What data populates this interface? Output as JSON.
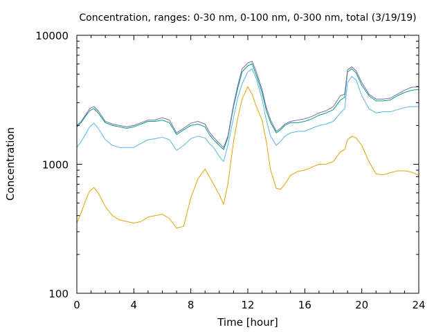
{
  "chart_data": {
    "type": "line",
    "title": "Concentration, ranges: 0-30 nm, 0-100 nm, 0-300 nm, total (3/19/19)",
    "xlabel": "Time [hour]",
    "ylabel": "Concentration",
    "xlim": [
      0,
      24
    ],
    "ylim": [
      100,
      10000
    ],
    "yscale": "log",
    "grid": false,
    "legend": "none",
    "x_ticks": [
      0,
      4,
      8,
      12,
      16,
      20,
      24
    ],
    "x_tick_labels": [
      "0",
      "4",
      "8",
      "12",
      "16",
      "20",
      "24"
    ],
    "y_ticks": [
      100,
      1000,
      10000
    ],
    "y_tick_labels": [
      "100",
      "1000",
      "10000"
    ],
    "series": [
      {
        "color": "#e69f00",
        "x": [
          0,
          0.3,
          0.6,
          0.9,
          1.2,
          1.5,
          2,
          2.5,
          3,
          3.5,
          4,
          4.5,
          5,
          5.5,
          6,
          6.5,
          7,
          7.5,
          8,
          8.5,
          9,
          9.3,
          9.6,
          10,
          10.3,
          10.6,
          11,
          11.3,
          11.6,
          12,
          12.3,
          12.6,
          13,
          13.3,
          13.6,
          14,
          14.3,
          14.6,
          15,
          15.5,
          16,
          16.5,
          17,
          17.5,
          18,
          18.5,
          18.8,
          19,
          19.3,
          19.6,
          20,
          20.5,
          21,
          21.5,
          22,
          22.5,
          23,
          23.5,
          24
        ],
        "y": [
          350,
          420,
          520,
          620,
          660,
          600,
          470,
          400,
          370,
          360,
          350,
          360,
          390,
          400,
          410,
          380,
          320,
          330,
          550,
          770,
          920,
          800,
          700,
          580,
          490,
          700,
          1500,
          2300,
          3200,
          4000,
          3500,
          2800,
          2200,
          1500,
          900,
          650,
          640,
          700,
          820,
          880,
          900,
          950,
          1000,
          1000,
          1050,
          1250,
          1300,
          1550,
          1650,
          1600,
          1400,
          1050,
          840,
          830,
          860,
          890,
          890,
          870,
          820
        ]
      },
      {
        "color": "#56b4e9",
        "x": [
          0,
          0.3,
          0.6,
          0.9,
          1.2,
          1.5,
          2,
          2.5,
          3,
          3.5,
          4,
          4.5,
          5,
          5.5,
          6,
          6.5,
          7,
          7.5,
          8,
          8.5,
          9,
          9.3,
          9.6,
          10,
          10.3,
          10.6,
          11,
          11.3,
          11.6,
          12,
          12.3,
          12.6,
          13,
          13.3,
          13.6,
          14,
          14.3,
          14.6,
          15,
          15.5,
          16,
          16.5,
          17,
          17.5,
          18,
          18.5,
          18.8,
          19,
          19.3,
          19.6,
          20,
          20.5,
          21,
          21.5,
          22,
          22.5,
          23,
          23.5,
          24
        ],
        "y": [
          1350,
          1500,
          1700,
          1950,
          2080,
          1900,
          1550,
          1400,
          1350,
          1350,
          1350,
          1450,
          1550,
          1580,
          1620,
          1550,
          1280,
          1400,
          1580,
          1650,
          1600,
          1450,
          1350,
          1150,
          1050,
          1400,
          2300,
          3300,
          4200,
          5200,
          5500,
          4600,
          3200,
          2200,
          1650,
          1400,
          1500,
          1650,
          1750,
          1800,
          1800,
          1900,
          2000,
          2050,
          2150,
          2500,
          2700,
          4300,
          4800,
          4500,
          3400,
          2700,
          2500,
          2550,
          2550,
          2650,
          2750,
          2800,
          2800
        ]
      },
      {
        "color": "#009e73",
        "x": [
          0,
          0.3,
          0.6,
          0.9,
          1.2,
          1.5,
          2,
          2.5,
          3,
          3.5,
          4,
          4.5,
          5,
          5.5,
          6,
          6.5,
          7,
          7.5,
          8,
          8.5,
          9,
          9.3,
          9.6,
          10,
          10.3,
          10.6,
          11,
          11.3,
          11.6,
          12,
          12.3,
          12.6,
          13,
          13.3,
          13.6,
          14,
          14.3,
          14.6,
          15,
          15.5,
          16,
          16.5,
          17,
          17.5,
          18,
          18.5,
          18.8,
          19,
          19.3,
          19.6,
          20,
          20.5,
          21,
          21.5,
          22,
          22.5,
          23,
          23.5,
          24
        ],
        "y": [
          1950,
          2100,
          2350,
          2600,
          2700,
          2500,
          2100,
          2000,
          1950,
          1900,
          1950,
          2050,
          2150,
          2150,
          2200,
          2100,
          1700,
          1850,
          2000,
          2050,
          1950,
          1700,
          1550,
          1400,
          1300,
          1600,
          2800,
          3900,
          5200,
          5800,
          6000,
          4900,
          3600,
          2600,
          2100,
          1750,
          1850,
          2000,
          2100,
          2100,
          2150,
          2250,
          2400,
          2500,
          2650,
          3150,
          3300,
          5200,
          5500,
          5100,
          4100,
          3400,
          3100,
          3100,
          3150,
          3400,
          3600,
          3750,
          3800
        ]
      },
      {
        "color": "#7b68b8",
        "x": [
          0,
          0.3,
          0.6,
          0.9,
          1.2,
          1.5,
          2,
          2.5,
          3,
          3.5,
          4,
          4.5,
          5,
          5.5,
          6,
          6.5,
          7,
          7.5,
          8,
          8.5,
          9,
          9.3,
          9.6,
          10,
          10.3,
          10.6,
          11,
          11.3,
          11.6,
          12,
          12.3,
          12.6,
          13,
          13.3,
          13.6,
          14,
          14.3,
          14.6,
          15,
          15.5,
          16,
          16.5,
          17,
          17.5,
          18,
          18.5,
          18.8,
          19,
          19.3,
          19.6,
          20,
          20.5,
          21,
          21.5,
          22,
          22.5,
          23,
          23.5,
          24
        ],
        "y": [
          2000,
          2150,
          2400,
          2700,
          2800,
          2600,
          2150,
          2050,
          2000,
          1950,
          2000,
          2100,
          2200,
          2200,
          2300,
          2200,
          1750,
          1900,
          2080,
          2150,
          2050,
          1780,
          1620,
          1450,
          1350,
          1650,
          2900,
          4100,
          5500,
          6100,
          6300,
          5200,
          3800,
          2750,
          2200,
          1800,
          1900,
          2050,
          2150,
          2200,
          2250,
          2350,
          2500,
          2600,
          2800,
          3400,
          3500,
          5400,
          5700,
          5300,
          4300,
          3500,
          3200,
          3200,
          3250,
          3500,
          3750,
          3950,
          4000
        ]
      }
    ]
  }
}
